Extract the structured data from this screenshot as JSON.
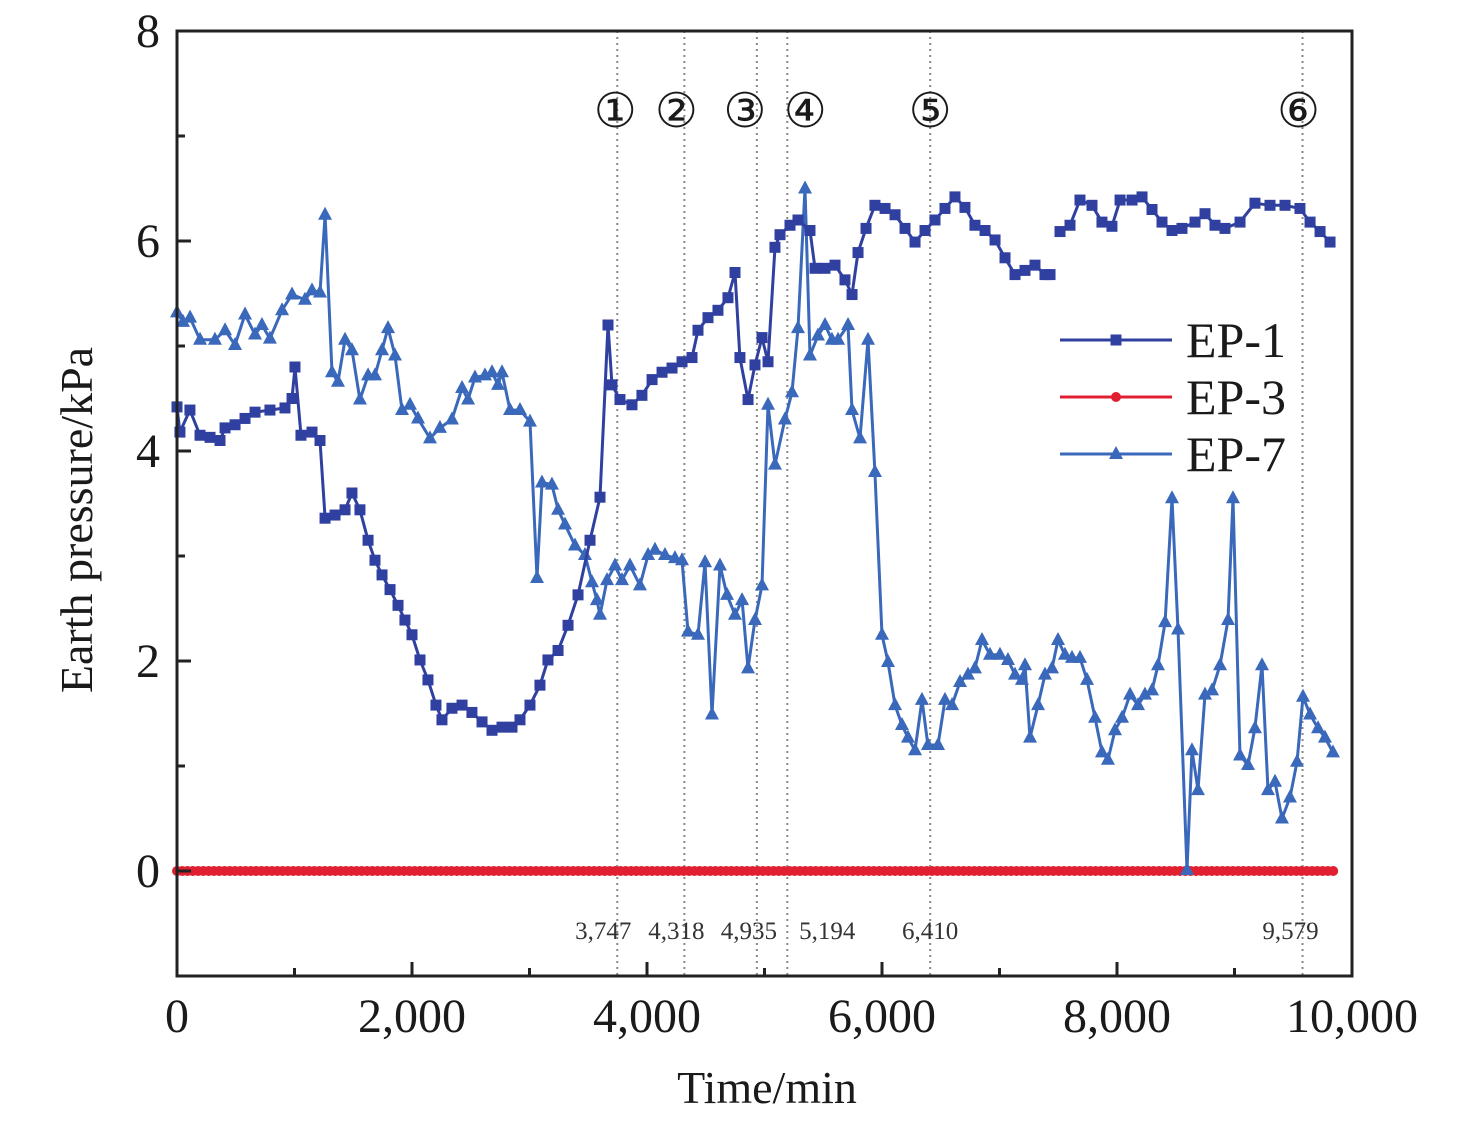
{
  "chart_data": {
    "type": "line",
    "title": "",
    "xlabel": "Time/min",
    "ylabel": "Earth pressure/kPa",
    "xlim": [
      0,
      10000
    ],
    "ylim": [
      -1,
      8
    ],
    "x_ticks": [
      0,
      2000,
      4000,
      6000,
      8000,
      10000
    ],
    "x_tick_labels": [
      "0",
      "2,000",
      "4,000",
      "6,000",
      "8,000",
      "10,000"
    ],
    "y_ticks": [
      0,
      2,
      4,
      6,
      8
    ],
    "y_tick_labels": [
      "0",
      "2",
      "4",
      "6",
      "8"
    ],
    "grid": false,
    "legend_position": "right-middle",
    "colors": {
      "EP-1": "#3040a0",
      "EP-3": "#e02030",
      "EP-7": "#3a68bb"
    },
    "series": [
      {
        "name": "EP-1",
        "marker": "square",
        "x": [
          0,
          25,
          110,
          196,
          281,
          366,
          409,
          494,
          579,
          664,
          791,
          919,
          979,
          1004,
          1055,
          1149,
          1217,
          1260,
          1345,
          1430,
          1489,
          1557,
          1626,
          1685,
          1745,
          1813,
          1881,
          1940,
          2000,
          2068,
          2136,
          2204,
          2255,
          2340,
          2426,
          2510,
          2596,
          2681,
          2766,
          2851,
          2919,
          3004,
          3089,
          3157,
          3243,
          3328,
          3413,
          3515,
          3600,
          3668,
          3702,
          3770,
          3872,
          3957,
          4043,
          4128,
          4213,
          4298,
          4383,
          4434,
          4519,
          4604,
          4689,
          4749,
          4791,
          4860,
          4919,
          4979,
          5030,
          5089,
          5132,
          5217,
          5285,
          5387,
          5430,
          5515,
          5600,
          5685,
          5745,
          5796,
          5864,
          5940,
          6026,
          6111,
          6196,
          6281,
          6366,
          6451,
          6536,
          6621,
          6706,
          6791,
          6877,
          6962,
          7047,
          7132,
          7217,
          7302,
          7387,
          7430,
          7470,
          7515,
          7600,
          7685,
          7787,
          7872,
          7957,
          8026,
          8128,
          8213,
          8298,
          8383,
          8468,
          8553,
          8664,
          8749,
          8834,
          8919,
          9047,
          9174,
          9302,
          9430,
          9557,
          9643,
          9728,
          9813
        ],
        "y": [
          4.42,
          4.18,
          4.39,
          4.15,
          4.13,
          4.1,
          4.22,
          4.25,
          4.31,
          4.37,
          4.39,
          4.41,
          4.5,
          4.8,
          4.15,
          4.18,
          4.1,
          3.36,
          3.39,
          3.44,
          3.6,
          3.44,
          3.15,
          2.96,
          2.82,
          2.68,
          2.53,
          2.39,
          2.25,
          2.01,
          1.82,
          1.58,
          1.44,
          1.55,
          1.58,
          1.51,
          1.42,
          1.34,
          1.37,
          1.37,
          1.44,
          1.58,
          1.77,
          2.01,
          2.1,
          2.34,
          2.63,
          3.15,
          3.56,
          5.2,
          4.63,
          4.49,
          4.44,
          4.53,
          4.68,
          4.75,
          4.79,
          4.85,
          4.89,
          5.15,
          5.27,
          5.34,
          5.46,
          5.7,
          4.89,
          4.49,
          4.82,
          5.08,
          4.85,
          5.94,
          6.06,
          6.15,
          6.2,
          6.1,
          5.74,
          5.74,
          5.77,
          5.63,
          5.49,
          5.89,
          6.12,
          6.34,
          6.31,
          6.25,
          6.12,
          5.99,
          6.1,
          6.2,
          6.31,
          6.42,
          6.32,
          6.15,
          6.1,
          6.01,
          5.84,
          5.68,
          5.72,
          5.77,
          5.68,
          5.68,
          null,
          6.09,
          6.15,
          6.39,
          6.34,
          6.18,
          6.14,
          6.39,
          6.39,
          6.42,
          6.3,
          6.18,
          6.1,
          6.12,
          6.18,
          6.26,
          6.15,
          6.12,
          6.18,
          6.36,
          6.34,
          6.34,
          6.31,
          6.18,
          6.09,
          5.99
        ]
      },
      {
        "name": "EP-3",
        "marker": "circle",
        "x_range": [
          0,
          9840
        ],
        "n_points": 220,
        "value": 0
      },
      {
        "name": "EP-7",
        "marker": "triangle",
        "x": [
          0,
          51,
          111,
          196,
          323,
          409,
          494,
          579,
          664,
          723,
          791,
          894,
          979,
          1089,
          1149,
          1217,
          1260,
          1319,
          1370,
          1430,
          1489,
          1557,
          1626,
          1685,
          1745,
          1796,
          1855,
          1915,
          1983,
          2051,
          2153,
          2238,
          2340,
          2426,
          2477,
          2536,
          2621,
          2681,
          2732,
          2766,
          2834,
          2919,
          3004,
          3064,
          3106,
          3191,
          3243,
          3302,
          3387,
          3472,
          3532,
          3574,
          3600,
          3660,
          3728,
          3787,
          3855,
          3940,
          4009,
          4068,
          4153,
          4238,
          4298,
          4349,
          4434,
          4494,
          4553,
          4621,
          4681,
          4749,
          4809,
          4860,
          4919,
          4979,
          5030,
          5089,
          5174,
          5234,
          5285,
          5345,
          5387,
          5455,
          5515,
          5574,
          5626,
          5711,
          5745,
          5813,
          5881,
          5940,
          6000,
          6051,
          6111,
          6170,
          6221,
          6281,
          6340,
          6391,
          6477,
          6536,
          6596,
          6664,
          6732,
          6791,
          6851,
          6919,
          7004,
          7072,
          7132,
          7191,
          7217,
          7260,
          7328,
          7387,
          7447,
          7498,
          7557,
          7617,
          7685,
          7745,
          7813,
          7872,
          7923,
          7983,
          8043,
          8111,
          8179,
          8238,
          8298,
          8349,
          8409,
          8468,
          8519,
          8596,
          8638,
          8689,
          8749,
          8809,
          8877,
          8945,
          8987,
          9047,
          9115,
          9174,
          9234,
          9285,
          9345,
          9404,
          9472,
          9532,
          9583,
          9643,
          9711,
          9770,
          9838
        ],
        "y": [
          5.32,
          5.23,
          5.27,
          5.06,
          5.06,
          5.15,
          5.01,
          5.3,
          5.11,
          5.2,
          5.07,
          5.34,
          5.49,
          5.44,
          5.53,
          5.51,
          6.25,
          4.75,
          4.66,
          5.06,
          4.96,
          4.49,
          4.72,
          4.72,
          4.96,
          5.17,
          4.91,
          4.39,
          4.44,
          4.31,
          4.12,
          4.22,
          4.3,
          4.6,
          4.49,
          4.7,
          4.72,
          4.75,
          4.63,
          4.75,
          4.39,
          4.39,
          4.28,
          2.79,
          3.7,
          3.68,
          3.44,
          3.3,
          3.1,
          3.01,
          2.75,
          2.58,
          2.44,
          2.77,
          2.91,
          2.77,
          2.91,
          2.72,
          3.01,
          3.06,
          3.01,
          2.98,
          2.96,
          2.28,
          2.25,
          2.94,
          1.49,
          2.91,
          2.63,
          2.44,
          2.58,
          1.93,
          2.39,
          2.72,
          4.44,
          3.87,
          4.3,
          4.56,
          5.17,
          6.5,
          4.91,
          5.1,
          5.2,
          5.06,
          5.06,
          5.2,
          4.39,
          4.12,
          5.06,
          3.8,
          2.25,
          1.99,
          1.58,
          1.39,
          1.27,
          1.15,
          1.63,
          1.2,
          1.2,
          1.63,
          1.58,
          1.8,
          1.87,
          1.93,
          2.2,
          2.06,
          2.06,
          2.01,
          1.87,
          1.82,
          1.96,
          1.27,
          1.58,
          1.87,
          1.93,
          2.2,
          2.06,
          2.03,
          2.03,
          1.82,
          1.46,
          1.13,
          1.06,
          1.34,
          1.46,
          1.68,
          1.58,
          1.68,
          1.72,
          1.96,
          2.37,
          3.55,
          2.3,
          0.01,
          1.15,
          0.77,
          1.68,
          1.72,
          1.96,
          2.39,
          3.55,
          1.1,
          1.01,
          1.36,
          1.96,
          0.77,
          0.85,
          0.5,
          0.7,
          1.04,
          1.66,
          1.49,
          1.36,
          1.27,
          1.13
        ]
      }
    ],
    "annotations": [
      {
        "x": 3747,
        "label": "①",
        "value_label": "3,747"
      },
      {
        "x": 4318,
        "label": "②",
        "value_label": "4,318"
      },
      {
        "x": 4935,
        "label": "③",
        "value_label": "4,935"
      },
      {
        "x": 5194,
        "label": "④",
        "value_label": "5,194"
      },
      {
        "x": 6410,
        "label": "⑤",
        "value_label": "6,410"
      },
      {
        "x": 9579,
        "label": "⑥",
        "value_label": "9,579"
      }
    ]
  }
}
